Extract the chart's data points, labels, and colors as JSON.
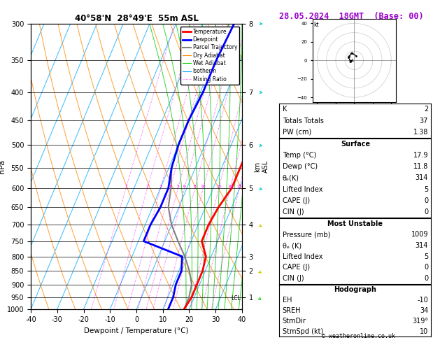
{
  "title_left": "40°58'N  28°49'E  55m ASL",
  "title_right": "28.05.2024  18GMT  (Base: 00)",
  "xlabel": "Dewpoint / Temperature (°C)",
  "ylabel_left": "hPa",
  "pres_levels": [
    300,
    350,
    400,
    450,
    500,
    550,
    600,
    650,
    700,
    750,
    800,
    850,
    900,
    950,
    1000
  ],
  "temp_x": [
    20,
    19,
    18,
    17,
    17,
    17,
    17,
    15,
    14,
    14,
    18,
    19,
    19,
    19,
    18
  ],
  "temp_p": [
    300,
    350,
    400,
    450,
    500,
    550,
    600,
    650,
    700,
    750,
    800,
    850,
    900,
    950,
    1000
  ],
  "dewp_x": [
    -8,
    -9,
    -9,
    -10,
    -10,
    -9,
    -7,
    -7,
    -8,
    -8,
    9,
    11,
    11,
    12,
    12
  ],
  "dewp_p": [
    300,
    350,
    400,
    450,
    500,
    550,
    600,
    650,
    700,
    750,
    800,
    850,
    900,
    950,
    1000
  ],
  "parcel_x": [
    -8,
    -9,
    -9,
    -10,
    -10,
    -9,
    -6,
    -4,
    0,
    5,
    10,
    14,
    17,
    18,
    18
  ],
  "parcel_p": [
    300,
    350,
    400,
    450,
    500,
    550,
    600,
    650,
    700,
    750,
    800,
    850,
    900,
    950,
    1000
  ],
  "skew_factor": 45,
  "temp_color": "#ff0000",
  "dewp_color": "#0000ff",
  "parcel_color": "#808080",
  "dry_adiabat_color": "#ff8800",
  "wet_adiabat_color": "#00cc00",
  "isotherm_color": "#00aaff",
  "mix_ratio_color": "#ff00ff",
  "background_color": "#ffffff",
  "xlim": [
    -40,
    40
  ],
  "pmin": 300,
  "pmax": 1000,
  "stats_K": "2",
  "stats_TT": "37",
  "stats_PW": "1.38",
  "stats_surf_temp": "17.9",
  "stats_surf_dewp": "11.8",
  "stats_theta_e": "314",
  "stats_LI": "5",
  "stats_CAPE": "0",
  "stats_CIN": "0",
  "stats_MU_pres": "1009",
  "stats_MU_theta_e": "314",
  "stats_MU_LI": "5",
  "stats_MU_CAPE": "0",
  "stats_MU_CIN": "0",
  "stats_EH": "-10",
  "stats_SREH": "34",
  "stats_StmDir": "319°",
  "stats_StmSpd": "10",
  "mix_ratio_values": [
    1,
    2,
    3,
    4,
    5,
    6,
    8,
    10,
    15,
    20,
    25
  ],
  "km_map_p": [
    300,
    400,
    500,
    600,
    700,
    800,
    850,
    950
  ],
  "km_map_v": [
    8,
    7,
    6,
    5,
    4,
    3,
    2,
    1
  ],
  "lcl_pressure": 955,
  "footer": "© weatheronline.co.uk",
  "hodo_u": [
    -2,
    -4,
    -6,
    -3,
    2
  ],
  "hodo_v": [
    0,
    -1,
    3,
    8,
    5
  ],
  "wind_barb_p": [
    300,
    400,
    500,
    600,
    700,
    850,
    950
  ],
  "wind_barb_dir": [
    270,
    260,
    255,
    250,
    240,
    230,
    220
  ],
  "wind_barb_spd": [
    30,
    25,
    20,
    15,
    12,
    8,
    5
  ]
}
